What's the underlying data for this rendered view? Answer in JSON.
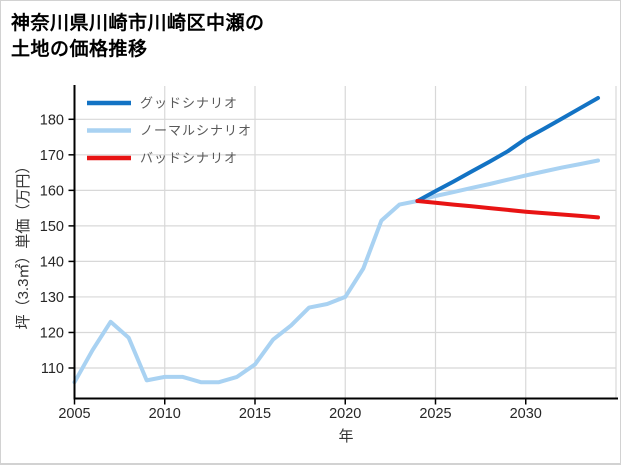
{
  "title": {
    "line1": "神奈川県川崎市川崎区中瀬の",
    "line2": "土地の価格推移"
  },
  "axes": {
    "x_label": "年",
    "y_label": "坪（3.3㎡）単価（万円）",
    "x_ticks": [
      2005,
      2010,
      2015,
      2020,
      2025,
      2030
    ],
    "x_gridlines": [
      2010,
      2015,
      2020,
      2025,
      2030,
      2035
    ],
    "y_ticks": [
      110,
      120,
      130,
      140,
      150,
      160,
      170,
      180
    ]
  },
  "colors": {
    "good": "#1373c4",
    "normal": "#a9d2f2",
    "bad": "#e81414",
    "gridline": "#d8d8d8",
    "spine": "#000000"
  },
  "chart_data": {
    "type": "line",
    "title": "神奈川県川崎市川崎区中瀬の土地の価格推移",
    "xlabel": "年",
    "ylabel": "坪（3.3㎡）単価（万円）",
    "xlim": [
      2005,
      2035.2
    ],
    "ylim": [
      101.5,
      189.5
    ],
    "grid": true,
    "legend_position": "upper-left",
    "series": [
      {
        "name": "グッドシナリオ",
        "color": "#1373c4",
        "x": [
          2024,
          2025,
          2026,
          2027,
          2028,
          2029,
          2030,
          2031,
          2032,
          2033,
          2034
        ],
        "y": [
          157,
          159.8,
          162.5,
          165.3,
          168.1,
          171,
          174.5,
          177.3,
          180.2,
          183.1,
          186
        ]
      },
      {
        "name": "ノーマルシナリオ",
        "color": "#a9d2f2",
        "x": [
          2005,
          2006,
          2007,
          2008,
          2009,
          2010,
          2011,
          2012,
          2013,
          2014,
          2015,
          2016,
          2017,
          2018,
          2019,
          2020,
          2021,
          2022,
          2023,
          2024,
          2025,
          2026,
          2027,
          2028,
          2029,
          2030,
          2031,
          2032,
          2033,
          2034
        ],
        "y": [
          106,
          115,
          123,
          118.5,
          106.5,
          107.5,
          107.5,
          106,
          106,
          107.5,
          111,
          118,
          122,
          127,
          128,
          130,
          138,
          151.5,
          156,
          157,
          158.4,
          159.5,
          160.7,
          161.8,
          163,
          164.2,
          165.3,
          166.4,
          167.4,
          168.4
        ]
      },
      {
        "name": "バッドシナリオ",
        "color": "#e81414",
        "x": [
          2024,
          2025,
          2026,
          2027,
          2028,
          2029,
          2030,
          2031,
          2032,
          2033,
          2034
        ],
        "y": [
          157,
          156.5,
          156,
          155.5,
          155,
          154.5,
          154,
          153.6,
          153.2,
          152.8,
          152.4
        ]
      }
    ]
  }
}
